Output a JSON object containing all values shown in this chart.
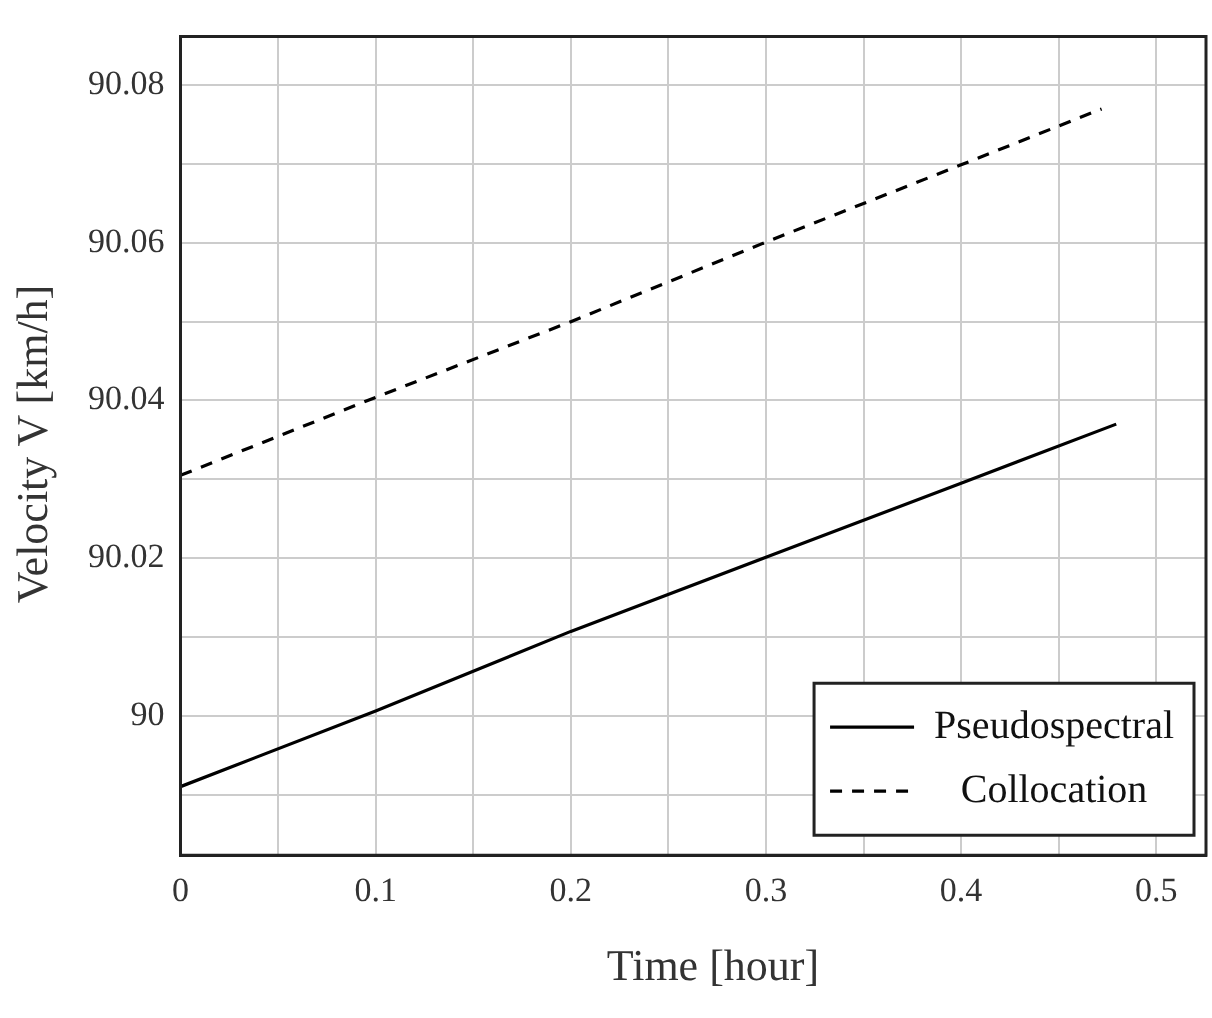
{
  "chart_data": {
    "type": "line",
    "xlabel": "Time [hour]",
    "ylabel": "Velocity V [km/h]",
    "xlim": [
      0,
      0.5255
    ],
    "ylim": [
      89.9823,
      90.0862
    ],
    "xticks": [
      0,
      {
        "value": 0.05,
        "label": null
      },
      0.1,
      {
        "value": 0.15,
        "label": null
      },
      0.2,
      {
        "value": 0.25,
        "label": null
      },
      0.3,
      {
        "value": 0.35,
        "label": null
      },
      0.4,
      {
        "value": 0.45,
        "label": null
      },
      0.5
    ],
    "yticks": [
      {
        "value": 89.99,
        "label": null
      },
      90,
      {
        "value": 90.01,
        "label": null
      },
      90.02,
      {
        "value": 90.03,
        "label": null
      },
      90.04,
      {
        "value": 90.05,
        "label": null
      },
      90.06,
      {
        "value": 90.07,
        "label": null
      },
      90.08
    ],
    "grid": true,
    "legend": "bottom right",
    "marker": "none",
    "series": [
      {
        "name": "Pseudospectral",
        "color": "#000000",
        "line_style": "solid",
        "x": [
          0,
          0.1,
          0.2,
          0.3,
          0.4,
          0.4795
        ],
        "values": [
          89.991,
          90.0006,
          90.0107,
          90.0201,
          90.0295,
          90.037
        ]
      },
      {
        "name": "Collocation",
        "color": "#000000",
        "line_style": "dashed",
        "x": [
          0,
          0.1,
          0.2,
          0.3,
          0.4,
          0.472
        ],
        "values": [
          90.0305,
          90.0404,
          90.05,
          90.0601,
          90.0699,
          90.077
        ]
      }
    ]
  }
}
